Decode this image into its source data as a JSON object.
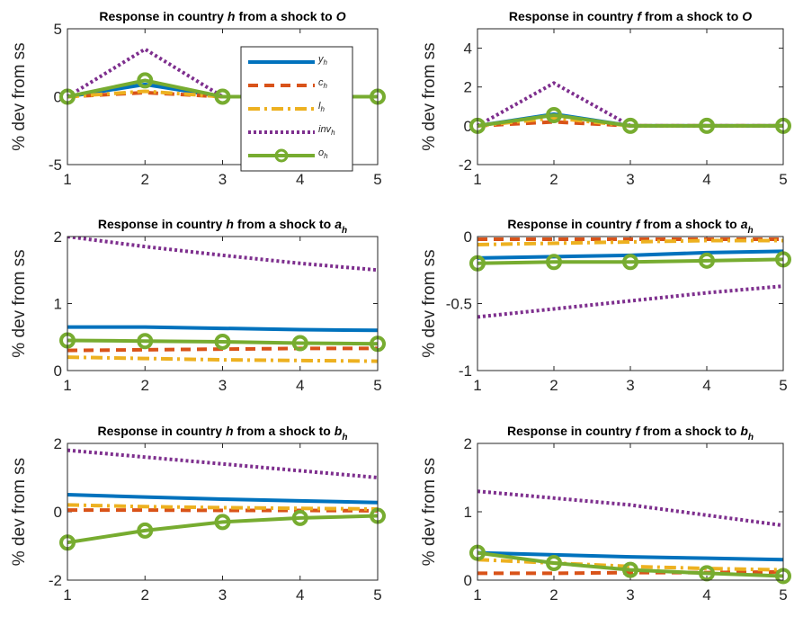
{
  "chart_data": [
    {
      "type": "line",
      "title": [
        {
          "text": "Response in country"
        },
        {
          "text": "h",
          "style": "italic"
        },
        {
          "text": "from a shock to"
        },
        {
          "text": "O",
          "style": "italic"
        }
      ],
      "ylabel": "% dev from ss",
      "x": [
        1,
        2,
        3,
        4,
        5
      ],
      "xlim": [
        1,
        5
      ],
      "xticks": [
        1,
        2,
        3,
        4,
        5
      ],
      "ylim": [
        -5,
        5
      ],
      "yticks": [
        -5,
        0,
        5
      ],
      "legend": true,
      "series": [
        {
          "name": "y",
          "name_sub": "h",
          "color": "#0072BD",
          "dash": "solid",
          "values": [
            0,
            0.9,
            0,
            0,
            0
          ]
        },
        {
          "name": "c",
          "name_sub": "h",
          "color": "#D95319",
          "dash": "dashed",
          "values": [
            0,
            0.3,
            0,
            0,
            0
          ]
        },
        {
          "name": "l",
          "name_sub": "h",
          "color": "#EDB120",
          "dash": "dashdot",
          "values": [
            0,
            0.4,
            0,
            0,
            0
          ]
        },
        {
          "name": "inv",
          "name_sub": "h",
          "color": "#7E2F8E",
          "dash": "dotted",
          "values": [
            0,
            3.5,
            0,
            0,
            0
          ]
        },
        {
          "name": "o",
          "name_sub": "h",
          "color": "#77AC30",
          "dash": "solid",
          "marker": "o",
          "values": [
            0,
            1.2,
            0,
            0,
            0
          ]
        }
      ]
    },
    {
      "type": "line",
      "title": [
        {
          "text": "Response in country"
        },
        {
          "text": "f",
          "style": "italic"
        },
        {
          "text": "from a shock to"
        },
        {
          "text": "O",
          "style": "italic"
        }
      ],
      "ylabel": "% dev from ss",
      "x": [
        1,
        2,
        3,
        4,
        5
      ],
      "xlim": [
        1,
        5
      ],
      "xticks": [
        1,
        2,
        3,
        4,
        5
      ],
      "ylim": [
        -2,
        5
      ],
      "yticks": [
        -2,
        0,
        2,
        4
      ],
      "series": [
        {
          "color": "#0072BD",
          "dash": "solid",
          "values": [
            0,
            0.6,
            0,
            0,
            0
          ]
        },
        {
          "color": "#D95319",
          "dash": "dashed",
          "values": [
            0,
            0.2,
            0,
            0,
            0
          ]
        },
        {
          "color": "#EDB120",
          "dash": "dashdot",
          "values": [
            0,
            0.4,
            0,
            0,
            0
          ]
        },
        {
          "color": "#7E2F8E",
          "dash": "dotted",
          "values": [
            0,
            2.2,
            0,
            0,
            0
          ]
        },
        {
          "color": "#77AC30",
          "dash": "solid",
          "marker": "o",
          "values": [
            0,
            0.55,
            0,
            0,
            0
          ]
        }
      ]
    },
    {
      "type": "line",
      "title": [
        {
          "text": "Response in country"
        },
        {
          "text": "h",
          "style": "italic"
        },
        {
          "text": "from a shock to"
        },
        {
          "text": "a",
          "style": "italic"
        },
        {
          "text": "h",
          "style": "sub"
        }
      ],
      "ylabel": "% dev from ss",
      "x": [
        1,
        2,
        3,
        4,
        5
      ],
      "xlim": [
        1,
        5
      ],
      "xticks": [
        1,
        2,
        3,
        4,
        5
      ],
      "ylim": [
        0,
        2
      ],
      "yticks": [
        0,
        1,
        2
      ],
      "series": [
        {
          "color": "#0072BD",
          "dash": "solid",
          "values": [
            0.65,
            0.65,
            0.63,
            0.61,
            0.6
          ]
        },
        {
          "color": "#D95319",
          "dash": "dashed",
          "values": [
            0.3,
            0.31,
            0.32,
            0.33,
            0.33
          ]
        },
        {
          "color": "#EDB120",
          "dash": "dashdot",
          "values": [
            0.2,
            0.18,
            0.16,
            0.15,
            0.14
          ]
        },
        {
          "color": "#7E2F8E",
          "dash": "dotted",
          "values": [
            2.0,
            1.85,
            1.72,
            1.6,
            1.5
          ]
        },
        {
          "color": "#77AC30",
          "dash": "solid",
          "marker": "o",
          "values": [
            0.45,
            0.44,
            0.43,
            0.41,
            0.4
          ]
        }
      ]
    },
    {
      "type": "line",
      "title": [
        {
          "text": "Response in country"
        },
        {
          "text": "f",
          "style": "italic"
        },
        {
          "text": "from a shock to"
        },
        {
          "text": "a",
          "style": "italic"
        },
        {
          "text": "h",
          "style": "sub"
        }
      ],
      "ylabel": "% dev from ss",
      "x": [
        1,
        2,
        3,
        4,
        5
      ],
      "xlim": [
        1,
        5
      ],
      "xticks": [
        1,
        2,
        3,
        4,
        5
      ],
      "ylim": [
        -1,
        0
      ],
      "yticks": [
        -1,
        -0.5,
        0
      ],
      "series": [
        {
          "color": "#0072BD",
          "dash": "solid",
          "values": [
            -0.16,
            -0.15,
            -0.14,
            -0.12,
            -0.11
          ]
        },
        {
          "color": "#D95319",
          "dash": "dashed",
          "values": [
            -0.02,
            -0.02,
            -0.02,
            -0.02,
            -0.02
          ]
        },
        {
          "color": "#EDB120",
          "dash": "dashdot",
          "values": [
            -0.06,
            -0.05,
            -0.04,
            -0.03,
            -0.03
          ]
        },
        {
          "color": "#7E2F8E",
          "dash": "dotted",
          "values": [
            -0.6,
            -0.54,
            -0.48,
            -0.42,
            -0.37
          ]
        },
        {
          "color": "#77AC30",
          "dash": "solid",
          "marker": "o",
          "values": [
            -0.2,
            -0.19,
            -0.19,
            -0.18,
            -0.17
          ]
        }
      ]
    },
    {
      "type": "line",
      "title": [
        {
          "text": "Response in country"
        },
        {
          "text": "h",
          "style": "italic"
        },
        {
          "text": "from a shock to"
        },
        {
          "text": "b",
          "style": "italic"
        },
        {
          "text": "h",
          "style": "sub"
        }
      ],
      "ylabel": "% dev from ss",
      "x": [
        1,
        2,
        3,
        4,
        5
      ],
      "xlim": [
        1,
        5
      ],
      "xticks": [
        1,
        2,
        3,
        4,
        5
      ],
      "ylim": [
        -2,
        2
      ],
      "yticks": [
        -2,
        0,
        2
      ],
      "series": [
        {
          "color": "#0072BD",
          "dash": "solid",
          "values": [
            0.5,
            0.43,
            0.37,
            0.32,
            0.27
          ]
        },
        {
          "color": "#D95319",
          "dash": "dashed",
          "values": [
            0.05,
            0.05,
            0.04,
            0.04,
            0.03
          ]
        },
        {
          "color": "#EDB120",
          "dash": "dashdot",
          "values": [
            0.2,
            0.15,
            0.12,
            0.1,
            0.08
          ]
        },
        {
          "color": "#7E2F8E",
          "dash": "dotted",
          "values": [
            1.8,
            1.6,
            1.4,
            1.2,
            1.0
          ]
        },
        {
          "color": "#77AC30",
          "dash": "solid",
          "marker": "o",
          "values": [
            -0.9,
            -0.55,
            -0.3,
            -0.18,
            -0.12
          ]
        }
      ]
    },
    {
      "type": "line",
      "title": [
        {
          "text": "Response in country"
        },
        {
          "text": "f",
          "style": "italic"
        },
        {
          "text": "from a shock to"
        },
        {
          "text": "b",
          "style": "italic"
        },
        {
          "text": "h",
          "style": "sub"
        }
      ],
      "ylabel": "% dev from ss",
      "x": [
        1,
        2,
        3,
        4,
        5
      ],
      "xlim": [
        1,
        5
      ],
      "xticks": [
        1,
        2,
        3,
        4,
        5
      ],
      "ylim": [
        0,
        2
      ],
      "yticks": [
        0,
        1,
        2
      ],
      "series": [
        {
          "color": "#0072BD",
          "dash": "solid",
          "values": [
            0.4,
            0.37,
            0.34,
            0.32,
            0.3
          ]
        },
        {
          "color": "#D95319",
          "dash": "dashed",
          "values": [
            0.1,
            0.1,
            0.11,
            0.11,
            0.12
          ]
        },
        {
          "color": "#EDB120",
          "dash": "dashdot",
          "values": [
            0.3,
            0.25,
            0.2,
            0.17,
            0.15
          ]
        },
        {
          "color": "#7E2F8E",
          "dash": "dotted",
          "values": [
            1.3,
            1.2,
            1.1,
            0.95,
            0.8
          ]
        },
        {
          "color": "#77AC30",
          "dash": "solid",
          "marker": "o",
          "values": [
            0.4,
            0.25,
            0.15,
            0.1,
            0.06
          ]
        }
      ]
    }
  ]
}
